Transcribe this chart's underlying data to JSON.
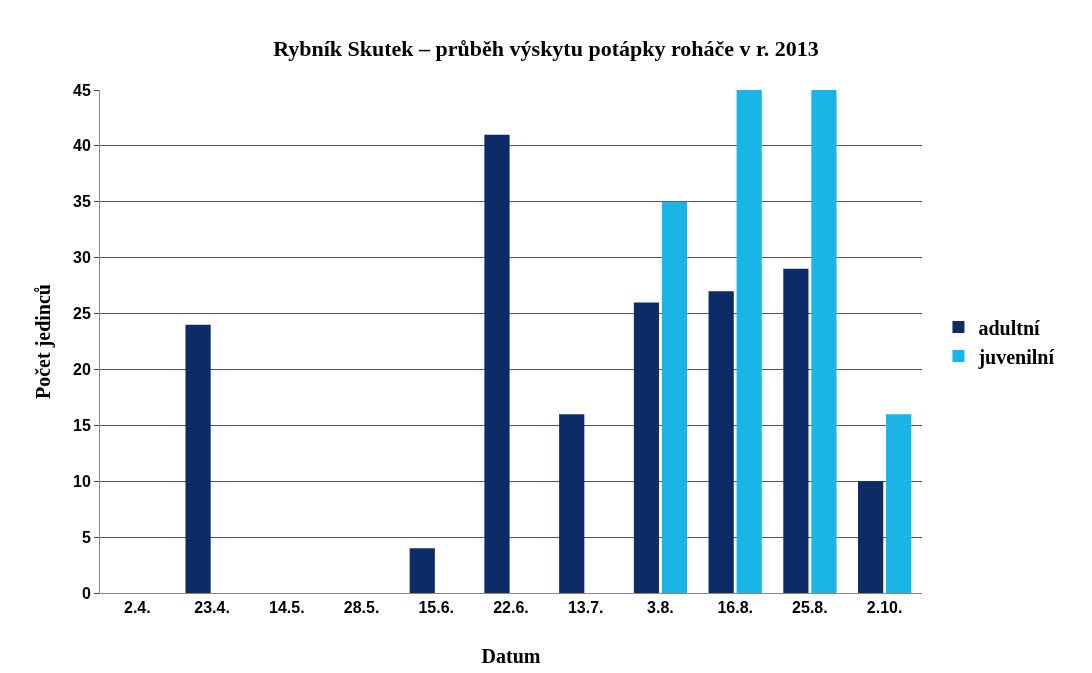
{
  "chart_data": {
    "type": "bar",
    "title": "Rybník Skutek – průběh výskytu potápky roháče v r. 2013",
    "xlabel": "Datum",
    "ylabel": "Počet jedinců",
    "categories": [
      "2.4.",
      "23.4.",
      "14.5.",
      "28.5.",
      "15.6.",
      "22.6.",
      "13.7.",
      "3.8.",
      "16.8.",
      "25.8.",
      "2.10."
    ],
    "series": [
      {
        "name": "adultní",
        "color": "#0d2b66",
        "values": [
          0,
          24,
          0,
          0,
          4,
          41,
          16,
          26,
          27,
          29,
          10
        ]
      },
      {
        "name": "juvenilní",
        "color": "#19b5e6",
        "values": [
          0,
          0,
          0,
          0,
          0,
          0,
          0,
          35,
          45,
          45,
          16
        ]
      }
    ],
    "ylim": [
      0,
      45
    ],
    "yticks": [
      0,
      5,
      10,
      15,
      20,
      25,
      30,
      35,
      40,
      45
    ],
    "grid": "y",
    "legend": "right"
  }
}
